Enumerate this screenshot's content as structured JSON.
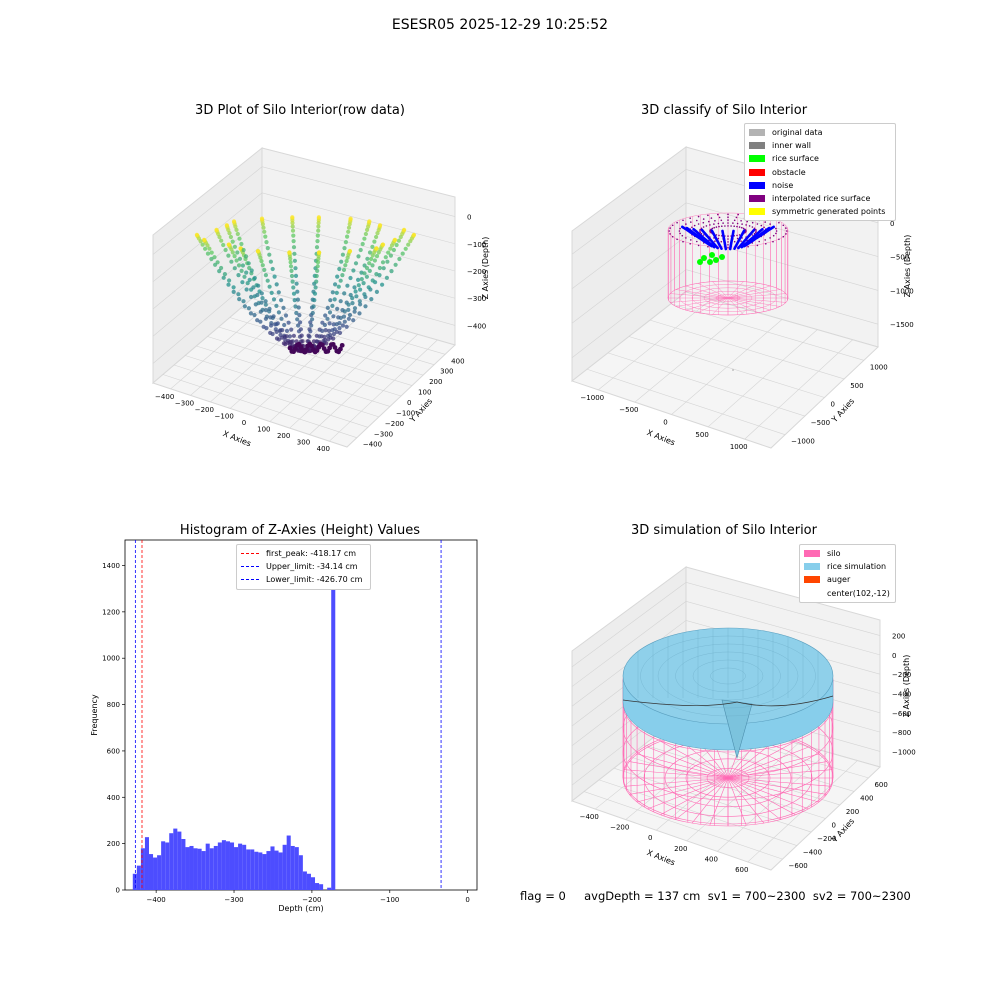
{
  "figure": {
    "suptitle": "ESESR05 2025-12-29 10:25:52",
    "status_text": "flag = 0     avgDepth = 137 cm  sv1 = 700~2300  sv2 = 700~2300"
  },
  "panels": {
    "raw": {
      "title": "3D Plot of Silo Interior(row data)",
      "xlabel": "X Axies",
      "ylabel": "Y Axies",
      "zlabel": "Z Axies (Depth)",
      "xticks": [
        "−400",
        "−300",
        "−200",
        "−100",
        "0",
        "100",
        "200",
        "300",
        "400"
      ],
      "yticks": [
        "−400",
        "−300",
        "−200",
        "−100",
        "0",
        "100",
        "200",
        "300",
        "400"
      ],
      "zticks": [
        "0",
        "−100",
        "−200",
        "−300",
        "−400"
      ],
      "colormap": "viridis"
    },
    "classify": {
      "title": "3D classify of Silo Interior",
      "xlabel": "X Axies",
      "ylabel": "Y Axies",
      "zlabel": "Z Axies (Depth)",
      "xticks": [
        "−1000",
        "−500",
        "0",
        "500",
        "1000"
      ],
      "yticks": [
        "−1000",
        "−500",
        "0",
        "500",
        "1000"
      ],
      "zticks": [
        "0",
        "−500",
        "−1000",
        "−1500"
      ],
      "legend": [
        {
          "label": "original data",
          "color": "#b3b3b3"
        },
        {
          "label": "inner wall",
          "color": "#808080"
        },
        {
          "label": "rice surface",
          "color": "#00ff00"
        },
        {
          "label": "obstacle",
          "color": "#ff0000"
        },
        {
          "label": "noise",
          "color": "#0000ff"
        },
        {
          "label": "interpolated rice surface",
          "color": "#800080"
        },
        {
          "label": "symmetric generated points",
          "color": "#ffff00"
        }
      ]
    },
    "simulation": {
      "title": "3D simulation of Silo Interior",
      "xlabel": "X Axies",
      "ylabel": "Y Axies",
      "zlabel": "Z Axies (Depth)",
      "xticks": [
        "−400",
        "−200",
        "0",
        "200",
        "400",
        "600"
      ],
      "yticks": [
        "−600",
        "−400",
        "−200",
        "0",
        "200",
        "400",
        "600"
      ],
      "zticks": [
        "200",
        "0",
        "−200",
        "−400",
        "−600",
        "−800",
        "−1000"
      ],
      "legend": [
        {
          "label": "silo",
          "color": "#ff69b4"
        },
        {
          "label": "rice simulation",
          "color": "#87ceeb"
        },
        {
          "label": "auger",
          "color": "#ff4500"
        },
        {
          "label": "center(102,-12)",
          "color": ""
        }
      ]
    }
  },
  "chart_data": {
    "type": "bar",
    "title": "Histogram of Z-Axies (Height) Values",
    "xlabel": "Depth (cm)",
    "ylabel": "Frequency",
    "xlim": [
      -440,
      12
    ],
    "ylim": [
      0,
      1510
    ],
    "xticks": [
      -400,
      -300,
      -200,
      -100,
      0
    ],
    "yticks": [
      0,
      200,
      400,
      600,
      800,
      1000,
      1200,
      1400
    ],
    "bin_start": -430,
    "bin_width": 5.2,
    "values": [
      70,
      105,
      180,
      228,
      155,
      140,
      150,
      210,
      205,
      245,
      265,
      252,
      220,
      185,
      190,
      180,
      178,
      168,
      200,
      180,
      190,
      205,
      215,
      210,
      205,
      185,
      200,
      195,
      175,
      175,
      165,
      162,
      155,
      168,
      188,
      170,
      162,
      195,
      235,
      190,
      185,
      150,
      80,
      70,
      55,
      30,
      25,
      0,
      10,
      1435
    ],
    "vlines": [
      {
        "label": "first_peak: -418.17 cm",
        "x": -418.17,
        "color": "#ff0000"
      },
      {
        "label": "Upper_limit: -34.14 cm",
        "x": -34.14,
        "color": "#0000ff"
      },
      {
        "label": "Lower_limit: -426.70 cm",
        "x": -426.7,
        "color": "#0000ff"
      }
    ],
    "bar_color": "#4d4dff",
    "legend_position": "upper center"
  }
}
